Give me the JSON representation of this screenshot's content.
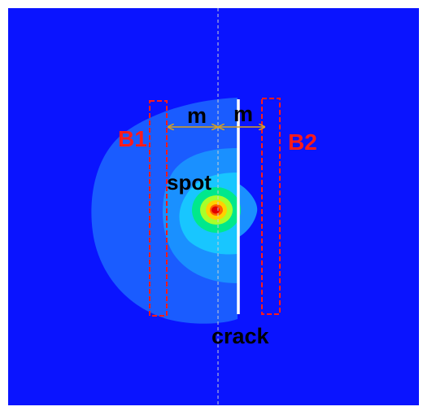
{
  "labels": {
    "m_left": "m",
    "m_right": "m",
    "b1": "B1",
    "b2": "B2",
    "spot": "spot",
    "crack": "crack"
  },
  "colors": {
    "background_field": "#0a14ff",
    "plume_outer": "#1a5cff",
    "plume_mid": "#1a90ff",
    "plume_inner": "#18c6ff",
    "hot_1": "#00e88c",
    "hot_2": "#a8ff2a",
    "hot_3": "#ffd200",
    "hot_4": "#ff6000",
    "hot_core": "#e00000",
    "crack": "#ffffff",
    "box_outline": "#ff1a1a",
    "box_label": "#ff1a1a",
    "dimension_arrow": "#d9a21c",
    "text_dark": "#000000",
    "center_line": "#cfcfcf"
  }
}
